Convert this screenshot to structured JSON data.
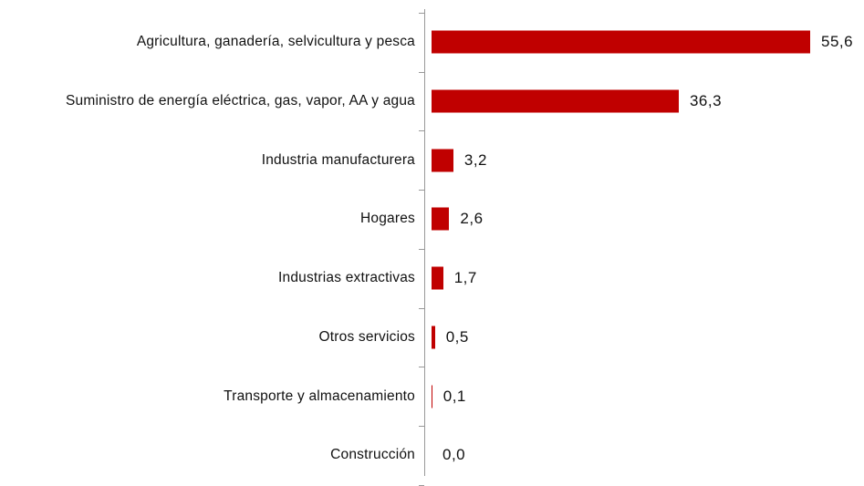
{
  "chart_data": {
    "type": "bar",
    "orientation": "horizontal",
    "categories": [
      "Agricultura, ganadería, selvicultura y pesca",
      "Suministro de energía eléctrica, gas, vapor, AA y agua",
      "Industria manufacturera",
      "Hogares",
      "Industrias extractivas",
      "Otros servicios",
      "Transporte y almacenamiento",
      "Construcción"
    ],
    "values": [
      55.6,
      36.3,
      3.2,
      2.6,
      1.7,
      0.5,
      0.1,
      0.0
    ],
    "value_labels": [
      "55,6",
      "36,3",
      "3,2",
      "2,6",
      "1,7",
      "0,5",
      "0,1",
      "0,0"
    ],
    "color": "#c00000"
  }
}
